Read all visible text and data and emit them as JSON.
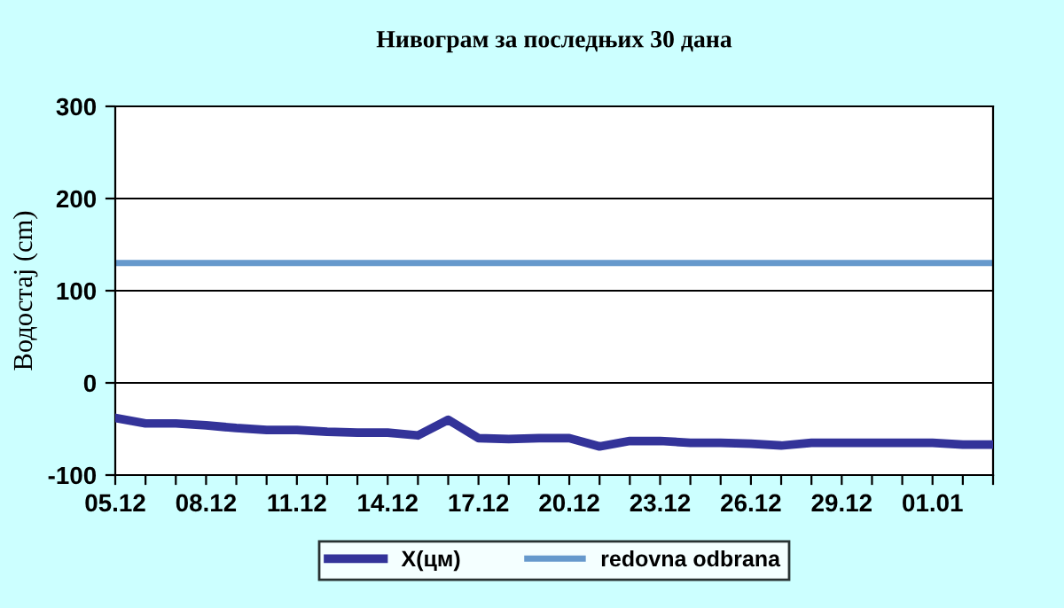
{
  "chart_data": {
    "type": "line",
    "title": "Нивограм за последњих 30 дана",
    "ylabel": "Водостај (cm)",
    "categories": [
      "05.12",
      null,
      null,
      "08.12",
      null,
      null,
      "11.12",
      null,
      null,
      "14.12",
      null,
      null,
      "17.12",
      null,
      null,
      "20.12",
      null,
      null,
      "23.12",
      null,
      null,
      "26.12",
      null,
      null,
      "29.12",
      null,
      null,
      "01.01",
      null,
      null
    ],
    "series": [
      {
        "name": "X(цм)",
        "color": "#333399",
        "values": [
          -38,
          -44,
          -44,
          -46,
          -49,
          -51,
          -51,
          -53,
          -54,
          -54,
          -57,
          -40,
          -60,
          -61,
          -60,
          -60,
          -69,
          -63,
          -63,
          -65,
          -65,
          -66,
          -68,
          -65,
          -65,
          -65,
          -65,
          -65,
          -67,
          -67
        ]
      }
    ],
    "ref_lines": [
      {
        "axis": "y",
        "value": 130,
        "label": "redovna odbrana",
        "color": "#6699cc"
      }
    ],
    "ylim": [
      -100,
      300
    ],
    "yticks": [
      -100,
      0,
      100,
      200,
      300
    ],
    "grid": "y",
    "legend": "bottom",
    "marker": "none",
    "line_style": "solid"
  }
}
